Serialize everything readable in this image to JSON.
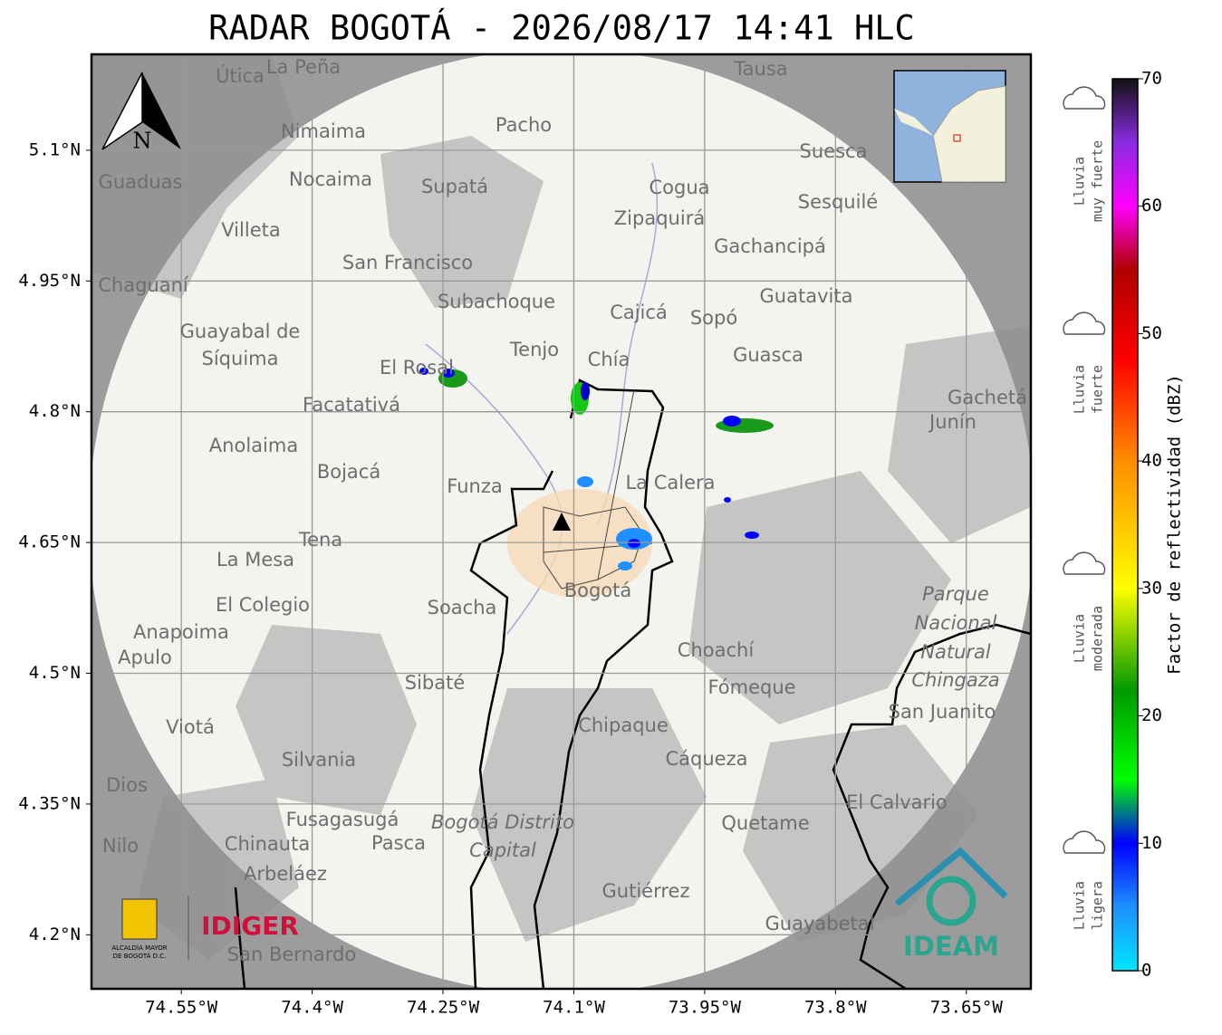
{
  "title": "RADAR BOGOTÁ - 2026/08/17 14:41 HLC",
  "map": {
    "xlim": [
      -74.653,
      -73.576
    ],
    "ylim": [
      4.138,
      5.21
    ],
    "lon_ticks": [
      {
        "value": -74.55,
        "label": "74.55°W"
      },
      {
        "value": -74.4,
        "label": "74.4°W"
      },
      {
        "value": -74.25,
        "label": "74.25°W"
      },
      {
        "value": -74.1,
        "label": "74.1°W"
      },
      {
        "value": -73.95,
        "label": "73.95°W"
      },
      {
        "value": -73.8,
        "label": "73.8°W"
      },
      {
        "value": -73.65,
        "label": "73.65°W"
      }
    ],
    "lat_ticks": [
      {
        "value": 5.1,
        "label": "5.1°N"
      },
      {
        "value": 4.95,
        "label": "4.95°N"
      },
      {
        "value": 4.8,
        "label": "4.8°N"
      },
      {
        "value": 4.65,
        "label": "4.65°N"
      },
      {
        "value": 4.5,
        "label": "4.5°N"
      },
      {
        "value": 4.35,
        "label": "4.35°N"
      },
      {
        "value": 4.2,
        "label": "4.2°N"
      }
    ],
    "grid": true,
    "north": "N",
    "places": [
      "La Peña",
      "Útica",
      "Tausa",
      "Pacho",
      "Nimaima",
      "Suesca",
      "Guaduas",
      "Nocaima",
      "Supatá",
      "Cogua",
      "Sesquilé",
      "Zipaquirá",
      "Villeta",
      "Gachancipá",
      "San Francisco",
      "Chaguaní",
      "Guatavita",
      "Subachoque",
      "Cajicá",
      "Sopó",
      "Guayabal de",
      "Síquima",
      "Tenjo",
      "Chía",
      "Guasca",
      "El Rosal",
      "Gachetá",
      "Junín",
      "Facatativá",
      "Anolaima",
      "Bojacá",
      "Funza",
      "La Calera",
      "Tena",
      "La Mesa",
      "Bogotá",
      "Parque",
      "Nacional",
      "Natural",
      "Chingaza",
      "Soacha",
      "El Colegio",
      "Anapoima",
      "Apulo",
      "Choachí",
      "Sibaté",
      "Fómeque",
      "San Juanito",
      "Viotá",
      "Chipaque",
      "Silvania",
      "Cáqueza",
      "El Calvario",
      "Dios",
      "Fusagasugá",
      "Bogotá Distrito",
      "Capital",
      "Quetame",
      "Chinauta",
      "Pasca",
      "Nilo",
      "Arbeláez",
      "Gutiérrez",
      "Guayabetal",
      "San Bernardo"
    ]
  },
  "colorbar": {
    "label": "Factor de reflectividad (dBZ)",
    "lim": [
      0,
      70
    ],
    "ticks": [
      0,
      10,
      20,
      30,
      40,
      50,
      60,
      70
    ],
    "stops": [
      {
        "value": 0,
        "color": "#00e5ff"
      },
      {
        "value": 5,
        "color": "#1e90ff"
      },
      {
        "value": 10,
        "color": "#0000ff"
      },
      {
        "value": 15,
        "color": "#00ff00"
      },
      {
        "value": 22,
        "color": "#009900"
      },
      {
        "value": 30,
        "color": "#ffff00"
      },
      {
        "value": 40,
        "color": "#ff8c00"
      },
      {
        "value": 48,
        "color": "#ff0000"
      },
      {
        "value": 55,
        "color": "#b00000"
      },
      {
        "value": 60,
        "color": "#ff00ff"
      },
      {
        "value": 65,
        "color": "#8a2be2"
      },
      {
        "value": 70,
        "color": "#111111"
      }
    ]
  },
  "rain_levels": [
    [
      "Lluvia",
      "ligera"
    ],
    [
      "Lluvia",
      "moderada"
    ],
    [
      "Lluvia",
      "fuerte"
    ],
    [
      "Lluvia",
      "muy fuerte"
    ]
  ],
  "logos": {
    "alcaldia": [
      "ALCALDÍA MAYOR",
      "DE BOGOTÁ D.C."
    ],
    "idiger": "IDIGER",
    "ideam": "IDEAM"
  }
}
